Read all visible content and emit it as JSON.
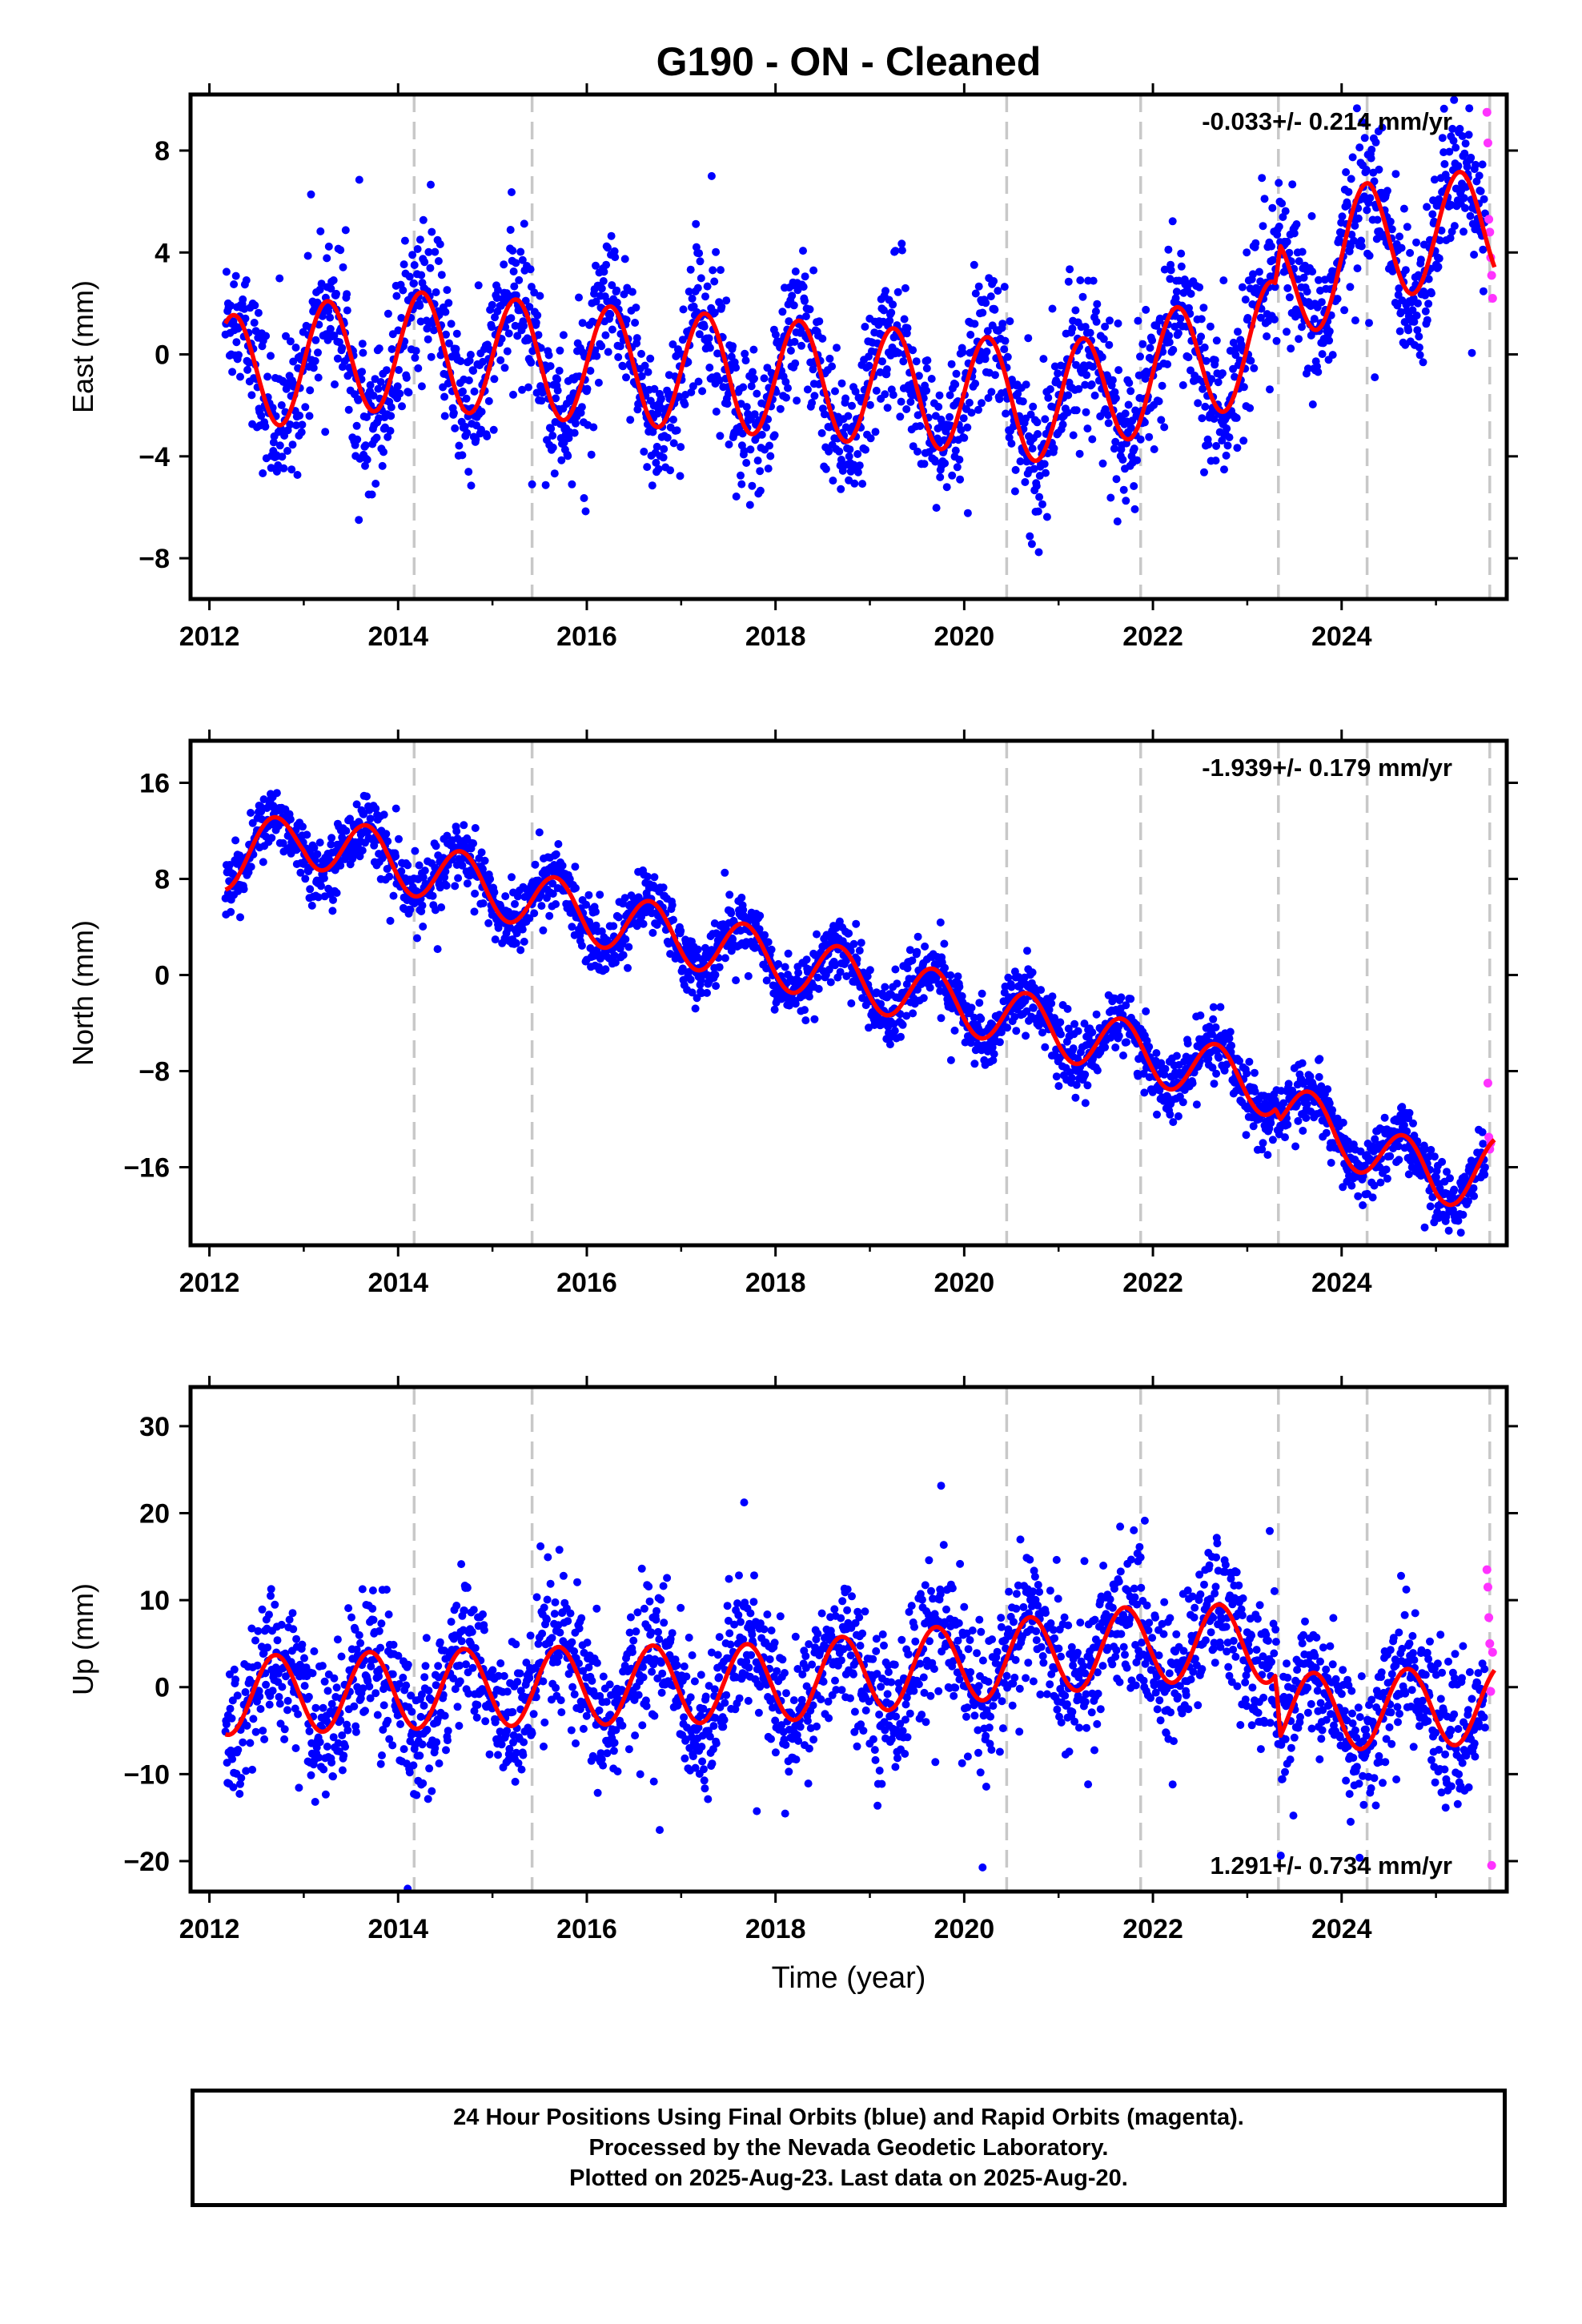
{
  "title": "G190  - ON - Cleaned",
  "xlabel": "Time (year)",
  "colors": {
    "final": "#0000ff",
    "rapid": "#ff33ff",
    "model": "#ff0000",
    "break": "#c8c8c8",
    "frame": "#000000"
  },
  "caption": [
    "24 Hour Positions Using Final Orbits (blue) and Rapid Orbits (magenta).",
    "Processed by the Nevada Geodetic Laboratory.",
    "Plotted on 2025-Aug-23. Last data on 2025-Aug-20."
  ],
  "chart_data": [
    {
      "type": "scatter",
      "component": "east",
      "ylabel": "East (mm)",
      "xlim": [
        2011.8,
        2025.75
      ],
      "ylim": [
        -9.6,
        10.2
      ],
      "xticks": [
        2012,
        2014,
        2016,
        2018,
        2020,
        2022,
        2024
      ],
      "yticks": [
        -8,
        -4,
        0,
        4,
        8
      ],
      "annotation": "-0.033+/- 0.214 mm/yr",
      "annotation_position": "top-right",
      "breaks": [
        2014.17,
        2015.42,
        2020.45,
        2021.87,
        2023.33,
        2024.27,
        2025.57
      ],
      "model": {
        "start": 2012.17,
        "end": 2025.62,
        "offset": 0.0,
        "trend": [
          [
            2012.17,
            -0.8
          ],
          [
            2014.0,
            0.2
          ],
          [
            2018.0,
            -0.9
          ],
          [
            2020.0,
            -1.5
          ],
          [
            2021.0,
            -2.0
          ],
          [
            2022.0,
            -0.7
          ],
          [
            2023.3,
            0.6
          ],
          [
            2023.35,
            2.4
          ],
          [
            2024.3,
            4.5
          ],
          [
            2025.62,
            5.0
          ]
        ],
        "amp": 2.3,
        "phase": 0.0
      },
      "final_series": {
        "name": "Final Orbits",
        "start": 2012.17,
        "end": 2025.52,
        "scatter": 1.4
      },
      "rapid_series": {
        "name": "Rapid Orbits",
        "x": [
          2025.54,
          2025.55,
          2025.56,
          2025.57,
          2025.58,
          2025.59,
          2025.6
        ],
        "y": [
          9.5,
          8.3,
          5.3,
          4.8,
          3.8,
          3.1,
          2.2
        ]
      }
    },
    {
      "type": "scatter",
      "component": "north",
      "ylabel": "North (mm)",
      "xlim": [
        2011.8,
        2025.75
      ],
      "ylim": [
        -22.5,
        19.5
      ],
      "xticks": [
        2012,
        2014,
        2016,
        2018,
        2020,
        2022,
        2024
      ],
      "yticks": [
        -16,
        -8,
        0,
        8,
        16
      ],
      "annotation": "-1.939+/- 0.179 mm/yr",
      "annotation_position": "top-right",
      "breaks": [
        2014.17,
        2015.42,
        2020.45,
        2021.87,
        2023.33,
        2024.27,
        2025.57
      ],
      "model": {
        "start": 2012.17,
        "end": 2025.62,
        "trend": [
          [
            2012.17,
            9.5
          ],
          [
            2013.0,
            11.5
          ],
          [
            2016.0,
            5.0
          ],
          [
            2020.0,
            -2.5
          ],
          [
            2023.3,
            -9.5
          ],
          [
            2023.35,
            -11.0
          ],
          [
            2025.0,
            -17.0
          ],
          [
            2025.62,
            -16.0
          ]
        ],
        "amp": 2.4,
        "phase": 0.42
      },
      "final_series": {
        "name": "Final Orbits",
        "start": 2012.17,
        "end": 2025.52,
        "scatter": 1.3
      },
      "rapid_series": {
        "name": "Rapid Orbits",
        "x": [
          2025.55,
          2025.56,
          2025.57,
          2025.58
        ],
        "y": [
          -9.0,
          -13.5,
          -14.5,
          -14.0
        ]
      }
    },
    {
      "type": "scatter",
      "component": "up",
      "ylabel": "Up (mm)",
      "xlim": [
        2011.8,
        2025.75
      ],
      "ylim": [
        -23.5,
        34.5
      ],
      "xticks": [
        2012,
        2014,
        2016,
        2018,
        2020,
        2022,
        2024
      ],
      "yticks": [
        -20,
        -10,
        0,
        10,
        20,
        30
      ],
      "annotation": "1.291+/- 0.734 mm/yr",
      "annotation_position": "bottom-right",
      "breaks": [
        2014.17,
        2015.42,
        2020.45,
        2021.87,
        2023.33,
        2024.27,
        2025.57
      ],
      "model": {
        "start": 2012.17,
        "end": 2025.62,
        "trend": [
          [
            2012.17,
            -1.0
          ],
          [
            2015.0,
            0.0
          ],
          [
            2018.0,
            0.5
          ],
          [
            2022.0,
            5.0
          ],
          [
            2023.3,
            5.0
          ],
          [
            2023.35,
            -3.0
          ],
          [
            2025.62,
            -2.0
          ]
        ],
        "amp": 4.5,
        "phase": 0.45
      },
      "final_series": {
        "name": "Final Orbits",
        "start": 2012.17,
        "end": 2025.52,
        "scatter": 4.0
      },
      "rapid_series": {
        "name": "Rapid Orbits",
        "x": [
          2025.54,
          2025.55,
          2025.56,
          2025.57,
          2025.58,
          2025.59,
          2025.6
        ],
        "y": [
          13.5,
          11.5,
          8.0,
          5.0,
          -0.5,
          -20.5,
          4.0
        ]
      }
    }
  ]
}
